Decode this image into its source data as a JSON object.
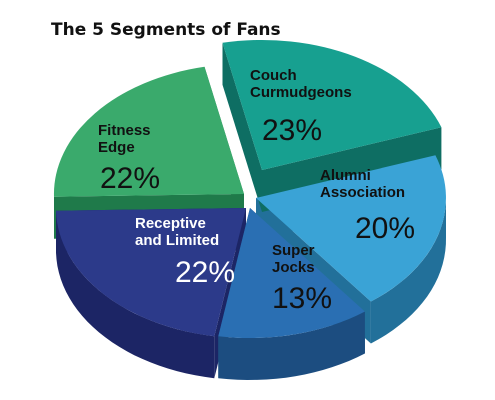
{
  "chart_data": {
    "type": "pie",
    "title": "The 5 Segments of Fans",
    "slices": [
      {
        "label_lines": [
          "Couch",
          "Curmudgeons"
        ],
        "value": 23,
        "value_label": "23%",
        "color": "#17a090",
        "side_color": "#0e6e63",
        "label_color": "#111111"
      },
      {
        "label_lines": [
          "Alumni",
          "Association"
        ],
        "value": 20,
        "value_label": "20%",
        "color": "#3aa3d6",
        "side_color": "#22709a",
        "label_color": "#111111"
      },
      {
        "label_lines": [
          "Super",
          "Jocks"
        ],
        "value": 13,
        "value_label": "13%",
        "color": "#2a6fb3",
        "side_color": "#1c4d80",
        "label_color": "#111111"
      },
      {
        "label_lines": [
          "Receptive",
          "and Limited"
        ],
        "value": 22,
        "value_label": "22%",
        "color": "#2c3a8a",
        "side_color": "#1c2565",
        "label_color": "#ffffff"
      },
      {
        "label_lines": [
          "Fitness",
          "Edge"
        ],
        "value": 22,
        "value_label": "22%",
        "color": "#3aaa6c",
        "side_color": "#1f7a4a",
        "label_color": "#111111"
      }
    ]
  }
}
